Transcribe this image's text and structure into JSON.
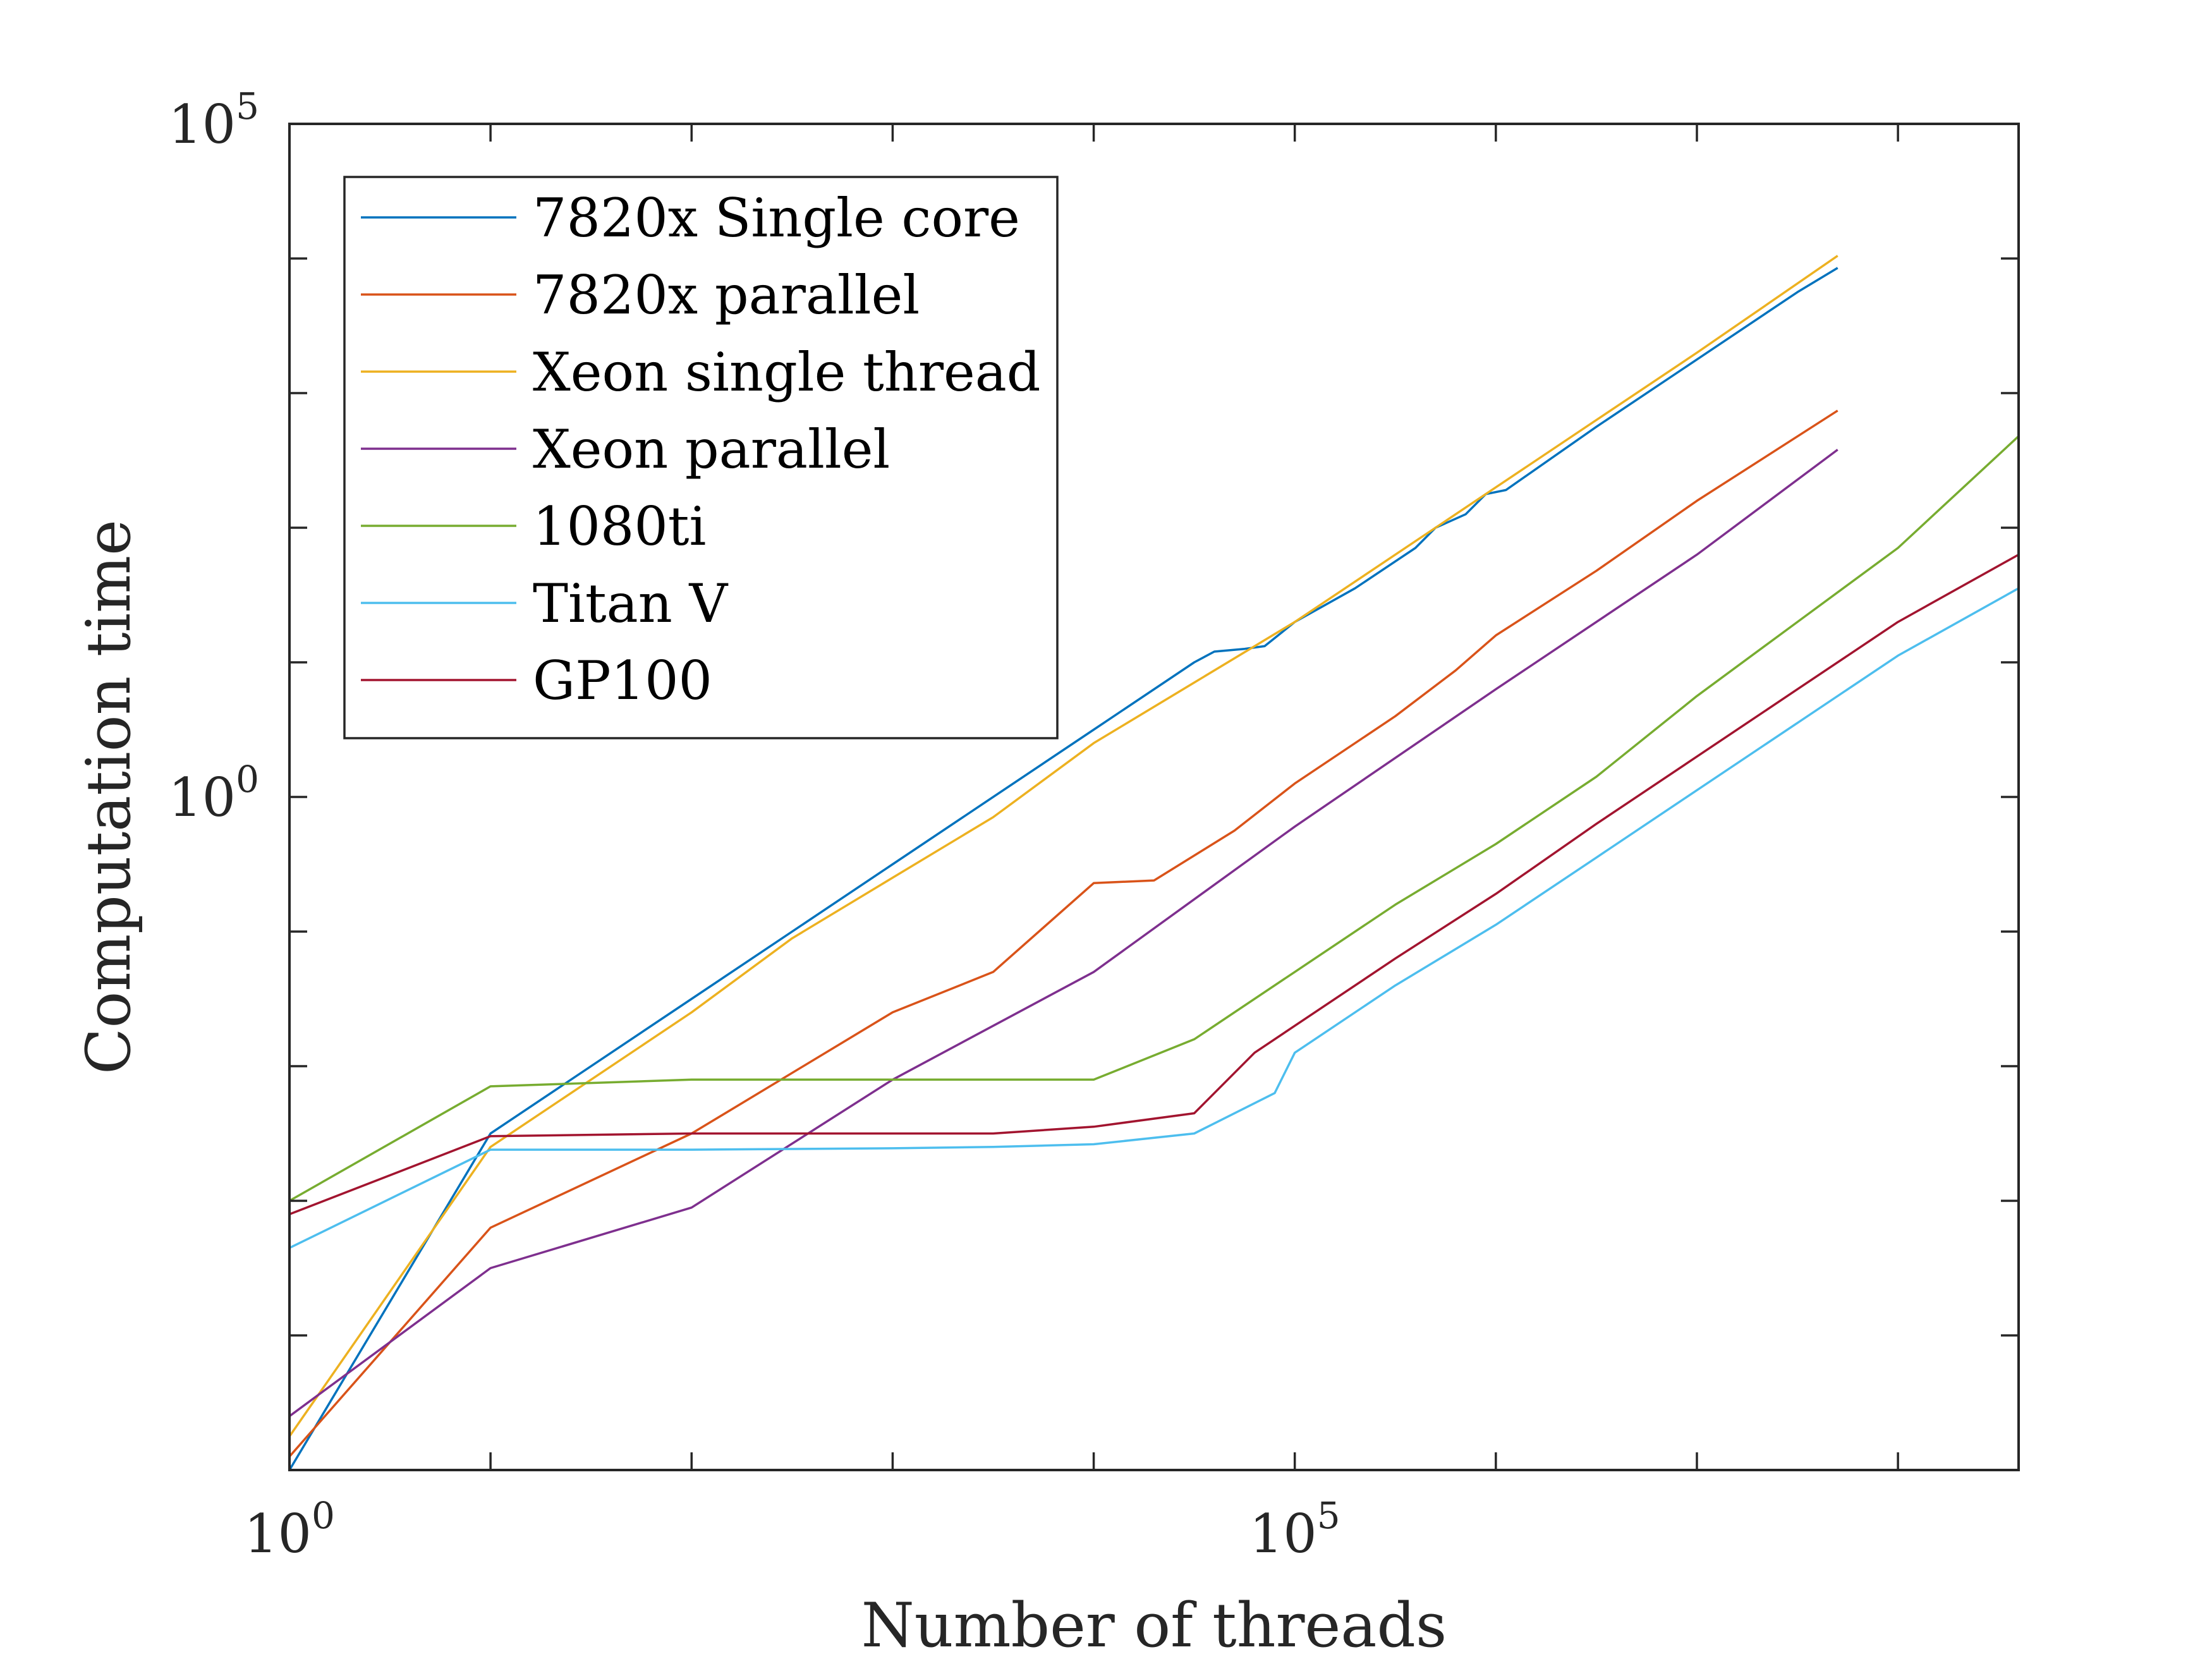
{
  "chart_data": {
    "type": "line",
    "title": "",
    "xlabel": "Number of threads",
    "ylabel": "Computation time",
    "x_scale": "log10",
    "y_scale": "log10",
    "xlim_exp": [
      0,
      8.6
    ],
    "ylim_exp": [
      -5,
      5
    ],
    "x_ticks": [
      {
        "base": "10",
        "exp": "0",
        "value_exp": 0
      },
      {
        "base": "10",
        "exp": "5",
        "value_exp": 5
      }
    ],
    "y_ticks": [
      {
        "base": "10",
        "exp": "0",
        "value_exp": 0
      },
      {
        "base": "10",
        "exp": "5",
        "value_exp": 5
      }
    ],
    "x_minor_tick_exps": [
      1,
      2,
      3,
      4,
      6,
      7,
      8
    ],
    "y_minor_tick_exps": [
      -4,
      -3,
      -2,
      -1,
      1,
      2,
      3,
      4
    ],
    "grid": false,
    "legend_position": "top-left",
    "series": [
      {
        "name": "7820x Single core",
        "color": "#0072BD",
        "points_log10": [
          [
            0,
            -5
          ],
          [
            1,
            -2.5
          ],
          [
            2,
            -1.5
          ],
          [
            3,
            -0.5
          ],
          [
            4,
            0.5
          ],
          [
            4.5,
            1
          ],
          [
            4.6,
            1.08
          ],
          [
            4.75,
            1.1
          ],
          [
            4.85,
            1.12
          ],
          [
            5,
            1.3
          ],
          [
            5.3,
            1.55
          ],
          [
            5.6,
            1.85
          ],
          [
            5.7,
            2.0
          ],
          [
            5.85,
            2.1
          ],
          [
            5.95,
            2.25
          ],
          [
            6.05,
            2.28
          ],
          [
            6.5,
            2.75
          ],
          [
            7,
            3.25
          ],
          [
            7.5,
            3.75
          ],
          [
            7.7,
            3.93
          ]
        ]
      },
      {
        "name": "7820x parallel",
        "color": "#D95319",
        "points_log10": [
          [
            0,
            -4.9
          ],
          [
            1,
            -3.2
          ],
          [
            2,
            -2.5
          ],
          [
            3,
            -1.6
          ],
          [
            3.5,
            -1.3
          ],
          [
            4,
            -0.64
          ],
          [
            4.3,
            -0.62
          ],
          [
            4.7,
            -0.25
          ],
          [
            5,
            0.1
          ],
          [
            5.5,
            0.6
          ],
          [
            5.8,
            0.94
          ],
          [
            6,
            1.2
          ],
          [
            6.5,
            1.68
          ],
          [
            7,
            2.2
          ],
          [
            7.7,
            2.87
          ]
        ]
      },
      {
        "name": "Xeon single thread",
        "color": "#EDB120",
        "points_log10": [
          [
            0,
            -4.75
          ],
          [
            1,
            -2.6
          ],
          [
            2,
            -1.6
          ],
          [
            2.5,
            -1.05
          ],
          [
            3,
            -0.6
          ],
          [
            3.5,
            -0.15
          ],
          [
            4,
            0.4
          ],
          [
            4.5,
            0.85
          ],
          [
            5,
            1.3
          ],
          [
            5.5,
            1.8
          ],
          [
            6,
            2.3
          ],
          [
            6.5,
            2.8
          ],
          [
            7,
            3.3
          ],
          [
            7.7,
            4.02
          ]
        ]
      },
      {
        "name": "Xeon parallel",
        "color": "#7E2F8E",
        "points_log10": [
          [
            0,
            -4.6
          ],
          [
            1,
            -3.5
          ],
          [
            2,
            -3.05
          ],
          [
            3,
            -2.1
          ],
          [
            4,
            -1.3
          ],
          [
            5,
            -0.22
          ],
          [
            6,
            0.8
          ],
          [
            7,
            1.8
          ],
          [
            7.7,
            2.58
          ]
        ]
      },
      {
        "name": "1080ti",
        "color": "#77AC30",
        "points_log10": [
          [
            0,
            -3
          ],
          [
            1,
            -2.15
          ],
          [
            2,
            -2.1
          ],
          [
            3,
            -2.1
          ],
          [
            3.5,
            -2.1
          ],
          [
            4,
            -2.1
          ],
          [
            4.5,
            -1.8
          ],
          [
            5,
            -1.3
          ],
          [
            5.5,
            -0.8
          ],
          [
            6,
            -0.35
          ],
          [
            6.5,
            0.15
          ],
          [
            7,
            0.75
          ],
          [
            7.5,
            1.3
          ],
          [
            8,
            1.85
          ],
          [
            8.6,
            2.68
          ]
        ]
      },
      {
        "name": "Titan V",
        "color": "#4DBEEE",
        "points_log10": [
          [
            0,
            -3.35
          ],
          [
            1,
            -2.62
          ],
          [
            2,
            -2.62
          ],
          [
            3,
            -2.61
          ],
          [
            3.5,
            -2.6
          ],
          [
            4,
            -2.58
          ],
          [
            4.5,
            -2.5
          ],
          [
            4.9,
            -2.2
          ],
          [
            5,
            -1.9
          ],
          [
            5.5,
            -1.4
          ],
          [
            6,
            -0.95
          ],
          [
            6.5,
            -0.45
          ],
          [
            7,
            0.05
          ],
          [
            7.5,
            0.55
          ],
          [
            8,
            1.05
          ],
          [
            8.6,
            1.55
          ]
        ]
      },
      {
        "name": "GP100",
        "color": "#A2142F",
        "points_log10": [
          [
            0,
            -3.1
          ],
          [
            1,
            -2.52
          ],
          [
            2,
            -2.5
          ],
          [
            3,
            -2.5
          ],
          [
            3.5,
            -2.5
          ],
          [
            4,
            -2.45
          ],
          [
            4.5,
            -2.35
          ],
          [
            4.8,
            -1.9
          ],
          [
            5,
            -1.7
          ],
          [
            5.5,
            -1.2
          ],
          [
            6,
            -0.72
          ],
          [
            6.5,
            -0.2
          ],
          [
            7,
            0.3
          ],
          [
            7.5,
            0.8
          ],
          [
            8,
            1.3
          ],
          [
            8.6,
            1.8
          ]
        ]
      }
    ]
  }
}
